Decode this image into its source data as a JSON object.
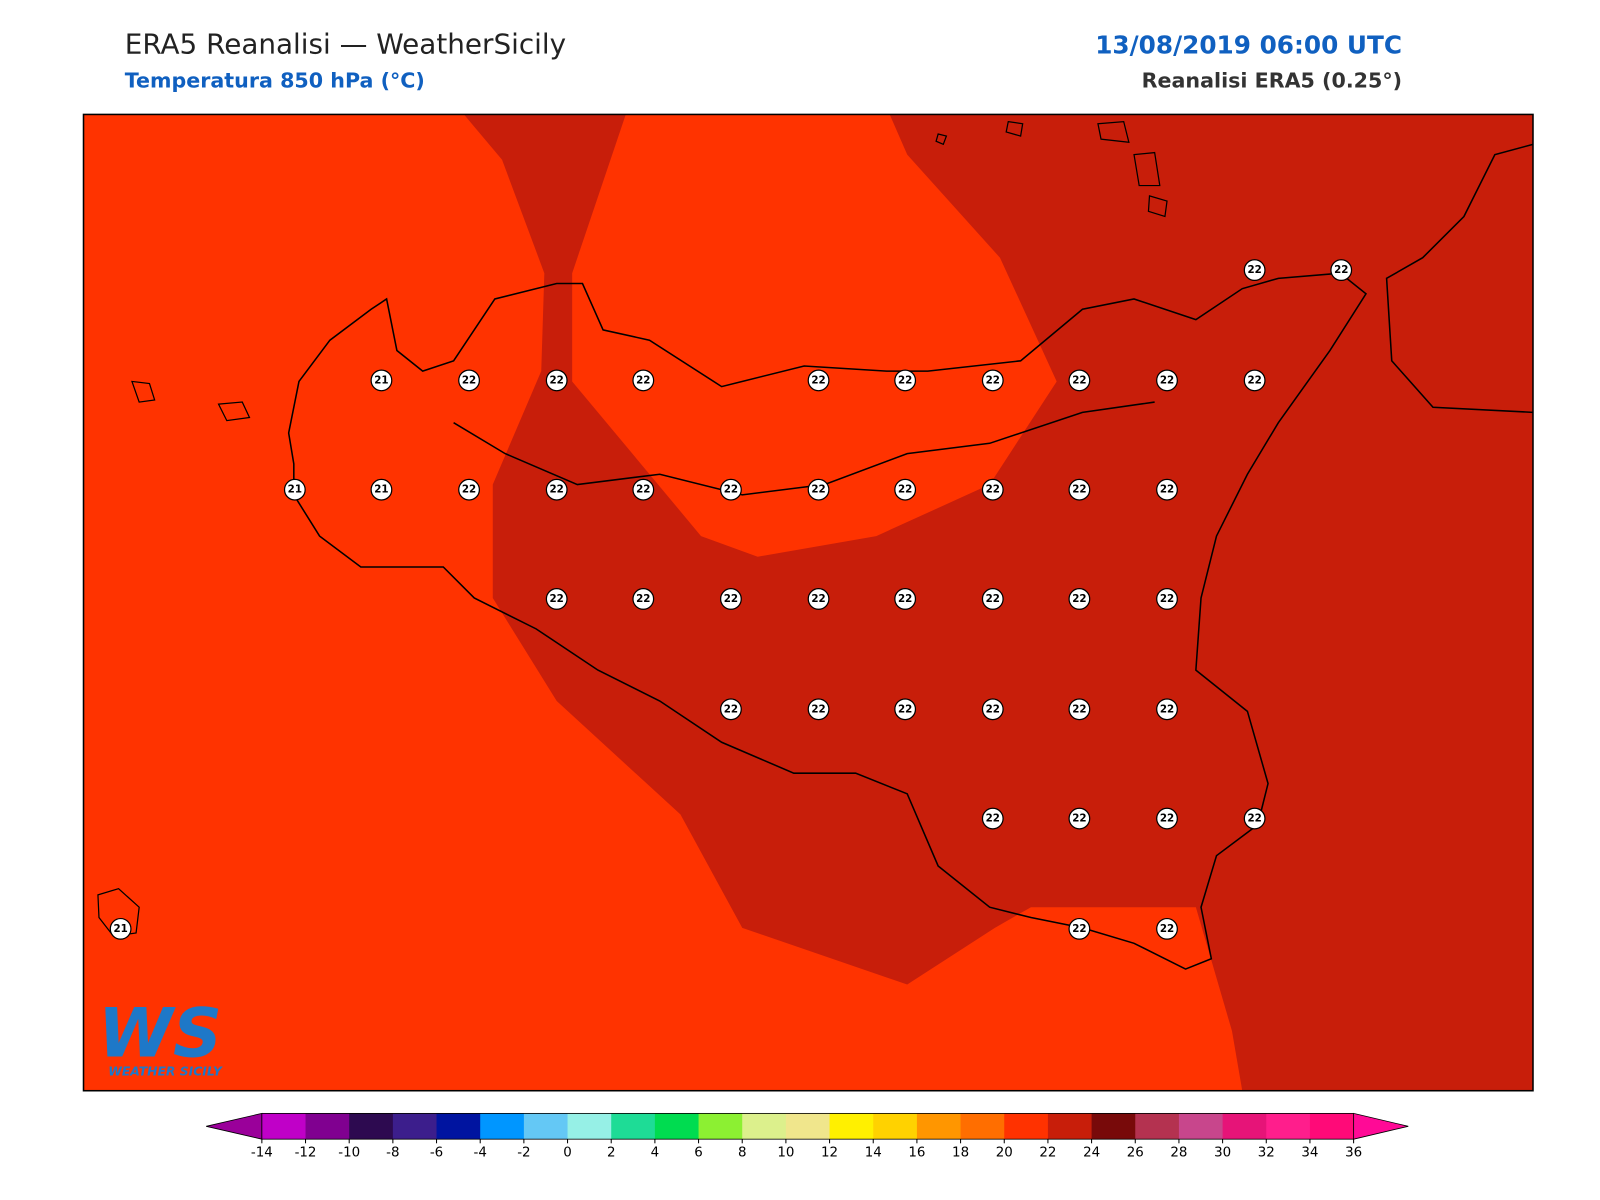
{
  "header": {
    "title": "ERA5 Reanalisi — WeatherSicily",
    "subtitle": "Temperatura 850 hPa (°C)",
    "datetime": "13/08/2019 06:00 UTC",
    "source": "Reanalisi ERA5 (0.25°)"
  },
  "logo": {
    "mark": "WS",
    "text": "WEATHER SICILY"
  },
  "map": {
    "background_color": "#ff3300",
    "warm_color": "#c81e0a",
    "point_values": [
      22,
      22,
      21,
      22,
      22,
      22,
      22,
      22,
      22,
      22,
      22,
      22,
      21,
      21,
      22,
      22,
      22,
      22,
      22,
      22,
      22,
      22,
      22,
      22,
      22,
      22,
      22,
      22,
      22,
      22,
      22,
      22,
      22,
      22,
      22,
      22,
      22,
      22,
      22,
      22,
      22,
      21,
      22,
      22
    ]
  },
  "colorbar": {
    "ticks": [
      -14,
      -12,
      -10,
      -8,
      -6,
      -4,
      -2,
      0,
      2,
      4,
      6,
      8,
      10,
      12,
      14,
      16,
      18,
      20,
      22,
      24,
      26,
      28,
      30,
      32,
      34,
      36
    ],
    "colors": [
      "#c000c8",
      "#800090",
      "#2d0a50",
      "#3c1e8c",
      "#0014a0",
      "#0096ff",
      "#64c8f5",
      "#96f0e6",
      "#1edc96",
      "#00dc50",
      "#8cf032",
      "#dcf08c",
      "#f0e68c",
      "#fff000",
      "#ffd200",
      "#ff9600",
      "#ff6e00",
      "#ff3200",
      "#c81e0a",
      "#780a0a",
      "#b43250",
      "#c8468c",
      "#e61478",
      "#ff1e8c",
      "#ff0a78"
    ],
    "extend_low_color": "#9a009a",
    "extend_high_color": "#ff0a96"
  }
}
